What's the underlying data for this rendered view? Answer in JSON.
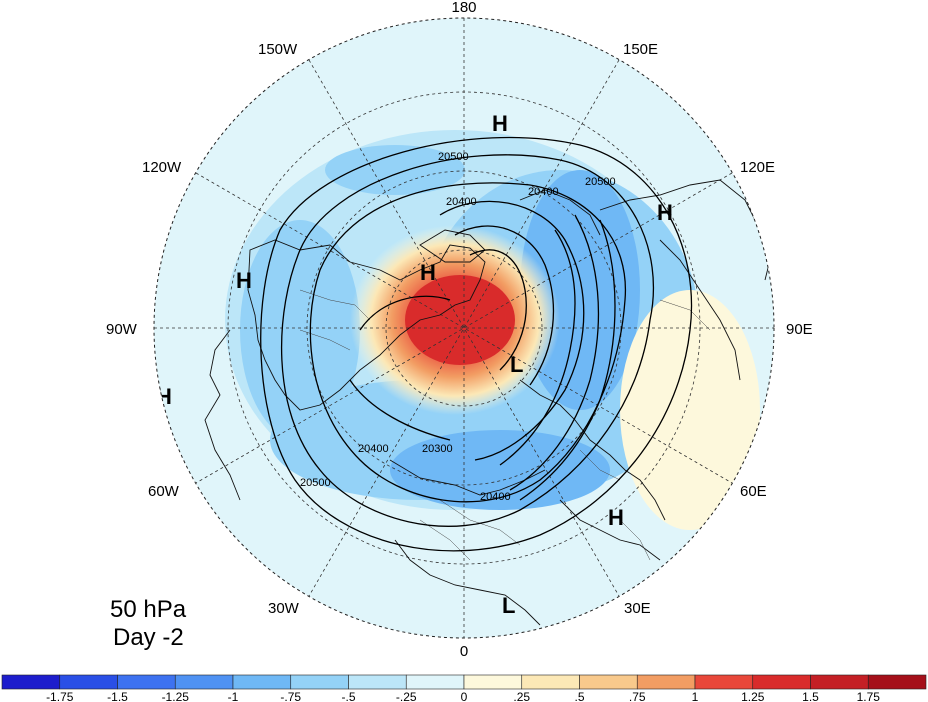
{
  "map": {
    "projection": "north-polar-stereographic",
    "pressure_level": "50 hPa",
    "day": "Day -2",
    "longitude_labels": [
      "180",
      "150E",
      "120E",
      "90E",
      "60E",
      "30E",
      "0",
      "30W",
      "60W",
      "90W",
      "120W",
      "150W"
    ],
    "contour_labels": [
      "20500",
      "20400",
      "20400",
      "20500",
      "20400",
      "20300",
      "20400",
      "20500"
    ],
    "pressure_centers": [
      {
        "type": "H",
        "label": "H"
      },
      {
        "type": "H",
        "label": "H"
      },
      {
        "type": "H",
        "label": "H"
      },
      {
        "type": "H",
        "label": "H"
      },
      {
        "type": "H",
        "label": "H"
      },
      {
        "type": "H",
        "label": "H"
      },
      {
        "type": "L",
        "label": "L"
      },
      {
        "type": "L",
        "label": "L"
      }
    ]
  },
  "colorbar": {
    "labels": [
      "-1.75",
      "-1.5",
      "-1.25",
      "-1",
      "-.75",
      "-.5",
      "-.25",
      "0",
      ".25",
      ".5",
      ".75",
      "1",
      "1.25",
      "1.5",
      "1.75"
    ],
    "colors": [
      "#1d1dcc",
      "#2a4fe6",
      "#3d72f0",
      "#4f92f3",
      "#6fb8f5",
      "#94d2f7",
      "#bce6f8",
      "#e0f5fa",
      "#fdf8dc",
      "#fce8b6",
      "#f8c98c",
      "#f29d63",
      "#e8473a",
      "#d92b2b",
      "#c41f25",
      "#a5101a"
    ]
  }
}
